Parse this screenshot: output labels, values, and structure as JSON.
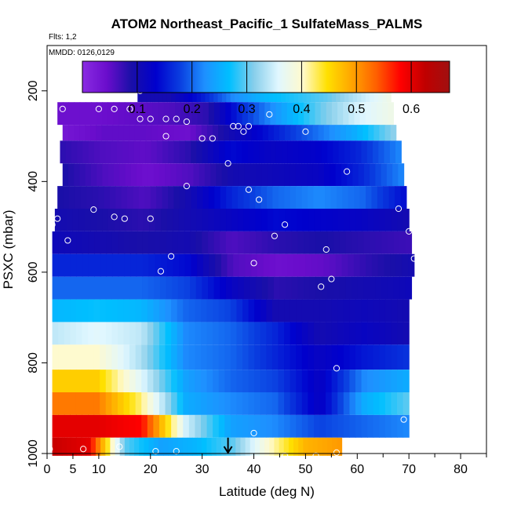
{
  "chart_data": {
    "type": "heatmap",
    "title": "ATOM2 Northeast_Pacific_1 SulfateMass_PALMS",
    "flights_label": "Flts: 1,2",
    "dates_label": "MMDD: 0126,0129",
    "xlabel": "Latitude (deg N)",
    "ylabel": "PSXC (mbar)",
    "xlim": [
      0,
      85
    ],
    "ylim": [
      1000,
      100
    ],
    "x_ticks": [
      0,
      5,
      10,
      20,
      30,
      40,
      50,
      60,
      70,
      80
    ],
    "x_minor_ticks": [
      45,
      55,
      65,
      75,
      85
    ],
    "y_ticks": [
      200,
      400,
      600,
      800,
      1000
    ],
    "colorbar": {
      "min": 0.0,
      "max": 0.67,
      "ticks": [
        0.1,
        0.2,
        0.3,
        0.4,
        0.5,
        0.6
      ],
      "tick_labels": [
        "0.1",
        "0.2",
        "0.3",
        "0.4",
        "0.5",
        "0.6"
      ]
    },
    "colors": {
      "stops": [
        "#8a2be2",
        "#6a0dcc",
        "#1a0fa8",
        "#0000cd",
        "#0a3fe0",
        "#1e90ff",
        "#00bfff",
        "#87ceeb",
        "#e0f7ff",
        "#fffacd",
        "#ffe000",
        "#ffa500",
        "#ff6000",
        "#ff0000",
        "#c00000",
        "#a01010"
      ],
      "marker": "#ffffff",
      "arrow": "#000000"
    },
    "arrow_latitude": 35,
    "layers": [
      {
        "p_top": 170,
        "p_bot": 225,
        "x0": 17.5,
        "x1": 66.5,
        "v": [
          0.1,
          0.1,
          0.15,
          0.22,
          0.26,
          0.28,
          0.3,
          0.34,
          0.38
        ]
      },
      {
        "p_top": 225,
        "p_bot": 275,
        "x0": 2,
        "x1": 67,
        "v": [
          0.04,
          0.04,
          0.05,
          0.06,
          0.08,
          0.17,
          0.24,
          0.3,
          0.35,
          0.38
        ]
      },
      {
        "p_top": 275,
        "p_bot": 310,
        "x0": 3,
        "x1": 67.5,
        "v": [
          0.03,
          0.05,
          0.05,
          0.04,
          0.1,
          0.15,
          0.2,
          0.25,
          0.32
        ]
      },
      {
        "p_top": 310,
        "p_bot": 360,
        "x0": 2.5,
        "x1": 68.5,
        "v": [
          0.08,
          0.06,
          0.05,
          0.08,
          0.14,
          0.12,
          0.13,
          0.16,
          0.22
        ]
      },
      {
        "p_top": 360,
        "p_bot": 410,
        "x0": 3,
        "x1": 69,
        "v": [
          0.09,
          0.06,
          0.04,
          0.06,
          0.1,
          0.11,
          0.12,
          0.16,
          0.22
        ]
      },
      {
        "p_top": 410,
        "p_bot": 460,
        "x0": 2,
        "x1": 69.5,
        "v": [
          0.09,
          0.08,
          0.06,
          0.1,
          0.16,
          0.2,
          0.22,
          0.2,
          0.14
        ]
      },
      {
        "p_top": 460,
        "p_bot": 510,
        "x0": 1.5,
        "x1": 70,
        "v": [
          0.1,
          0.09,
          0.08,
          0.1,
          0.12,
          0.14,
          0.13,
          0.12,
          0.1
        ]
      },
      {
        "p_top": 510,
        "p_bot": 560,
        "x0": 1,
        "x1": 70.5,
        "v": [
          0.11,
          0.1,
          0.09,
          0.1,
          0.06,
          0.08,
          0.09,
          0.08,
          0.07
        ]
      },
      {
        "p_top": 560,
        "p_bot": 610,
        "x0": 1,
        "x1": 71,
        "v": [
          0.16,
          0.16,
          0.16,
          0.14,
          0.06,
          0.04,
          0.05,
          0.08,
          0.1
        ]
      },
      {
        "p_top": 610,
        "p_bot": 660,
        "x0": 1,
        "x1": 70.5,
        "v": [
          0.2,
          0.2,
          0.2,
          0.18,
          0.12,
          0.08,
          0.09,
          0.1,
          0.11
        ]
      },
      {
        "p_top": 660,
        "p_bot": 710,
        "x0": 1,
        "x1": 70,
        "v": [
          0.26,
          0.27,
          0.26,
          0.2,
          0.18,
          0.1,
          0.1,
          0.11,
          0.1
        ]
      },
      {
        "p_top": 710,
        "p_bot": 760,
        "x0": 1,
        "x1": 70,
        "v": [
          0.34,
          0.36,
          0.34,
          0.22,
          0.2,
          0.16,
          0.1,
          0.12,
          0.1
        ]
      },
      {
        "p_top": 760,
        "p_bot": 815,
        "x0": 1,
        "x1": 70,
        "v": [
          0.4,
          0.4,
          0.33,
          0.22,
          0.2,
          0.16,
          0.12,
          0.15,
          0.17
        ]
      },
      {
        "p_top": 815,
        "p_bot": 865,
        "x0": 1,
        "x1": 70,
        "v": [
          0.46,
          0.46,
          0.36,
          0.24,
          0.2,
          0.18,
          0.12,
          0.22,
          0.25
        ]
      },
      {
        "p_top": 865,
        "p_bot": 915,
        "x0": 1,
        "x1": 70,
        "v": [
          0.52,
          0.52,
          0.42,
          0.25,
          0.22,
          0.2,
          0.12,
          0.25,
          0.3
        ]
      },
      {
        "p_top": 915,
        "p_bot": 965,
        "x0": 1,
        "x1": 70,
        "v": [
          0.6,
          0.6,
          0.58,
          0.35,
          0.24,
          0.22,
          0.18,
          0.2,
          0.22
        ]
      },
      {
        "p_top": 965,
        "p_bot": 1005,
        "x0": 1,
        "x1": 57,
        "v": [
          0.62,
          0.6,
          0.3,
          0.24,
          0.26,
          0.3,
          0.4,
          0.48,
          0.5
        ]
      }
    ],
    "points": [
      [
        18,
        200
      ],
      [
        30,
        185
      ],
      [
        3,
        240
      ],
      [
        10,
        240
      ],
      [
        13,
        240
      ],
      [
        16,
        240
      ],
      [
        18,
        262
      ],
      [
        20,
        262
      ],
      [
        23,
        262
      ],
      [
        25,
        262
      ],
      [
        27,
        268
      ],
      [
        23,
        300
      ],
      [
        30,
        305
      ],
      [
        32,
        305
      ],
      [
        36,
        278
      ],
      [
        37,
        278
      ],
      [
        39,
        278
      ],
      [
        38,
        290
      ],
      [
        43,
        252
      ],
      [
        50,
        290
      ],
      [
        35,
        360
      ],
      [
        58,
        378
      ],
      [
        27,
        410
      ],
      [
        39,
        418
      ],
      [
        41,
        440
      ],
      [
        9,
        462
      ],
      [
        13,
        478
      ],
      [
        15,
        482
      ],
      [
        20,
        482
      ],
      [
        2,
        482
      ],
      [
        1,
        495
      ],
      [
        46,
        495
      ],
      [
        68,
        460
      ],
      [
        70,
        510
      ],
      [
        44,
        520
      ],
      [
        4,
        530
      ],
      [
        54,
        550
      ],
      [
        24,
        565
      ],
      [
        71,
        570
      ],
      [
        40,
        580
      ],
      [
        22,
        598
      ],
      [
        55,
        615
      ],
      [
        53,
        632
      ],
      [
        56,
        812
      ],
      [
        69,
        925
      ],
      [
        40,
        955
      ],
      [
        0.5,
        990
      ],
      [
        7,
        990
      ],
      [
        14,
        985
      ],
      [
        21,
        995
      ],
      [
        25,
        995
      ],
      [
        46,
        1005
      ],
      [
        52,
        1005
      ],
      [
        56,
        998
      ]
    ]
  }
}
